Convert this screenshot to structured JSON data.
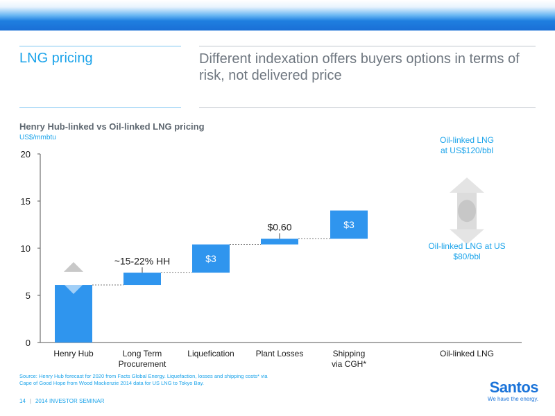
{
  "slide": {
    "section_title": "LNG pricing",
    "headline": "Different indexation offers buyers options in terms of risk, not delivered price",
    "chart_title": "Henry Hub-linked vs Oil-linked LNG pricing",
    "unit_label": "US$/mmbtu",
    "source_note": "Source: Henry Hub forecast for 2020 from Facts Global Energy. Liquefaction, losses and shipping costs* via Cape of Good Hope from Wood Mackenzie 2014 data for US LNG to Tokyo Bay.",
    "footer": {
      "page": "14",
      "separator": "|",
      "event": "2014 INVESTOR SEMINAR"
    },
    "logo": {
      "name": "Santos",
      "tagline": "We have the energy."
    }
  },
  "colors": {
    "bar": "#2f95ee",
    "accent": "#1aa3ea",
    "text_dark": "#1a1a1a",
    "axis": "#555555",
    "arrow_gray": "#c8c8c8"
  },
  "chart_data": {
    "type": "bar",
    "subtype": "waterfall",
    "title": "Henry Hub-linked vs Oil-linked LNG pricing",
    "ylabel": "US$/mmbtu",
    "ylim": [
      0,
      20
    ],
    "yticks": [
      "0",
      "5",
      "10",
      "15",
      "20"
    ],
    "categories": [
      "Henry Hub",
      "Long Term\nProcurement",
      "Liquefication",
      "Plant Losses",
      "Shipping\nvia CGH*",
      "Oil-linked LNG"
    ],
    "bars": [
      {
        "category": "Henry Hub",
        "start": 0,
        "end": 6.1,
        "label": ""
      },
      {
        "category": "Long Term Procurement",
        "start": 6.1,
        "end": 7.4,
        "label": "~15-22% HH"
      },
      {
        "category": "Liquefication",
        "start": 7.4,
        "end": 10.4,
        "label": "$3"
      },
      {
        "category": "Plant Losses",
        "start": 10.4,
        "end": 11.0,
        "label": "$0.60"
      },
      {
        "category": "Shipping via CGH*",
        "start": 11.0,
        "end": 14.0,
        "label": "$3"
      }
    ],
    "oil_linked_range": {
      "low_label": "Oil-linked LNG at US $80/bbl",
      "high_label": "Oil-linked LNG at US$120/bbl",
      "low_value": 10.4,
      "high_value": 17.5
    },
    "grid": false,
    "legend": "none"
  }
}
